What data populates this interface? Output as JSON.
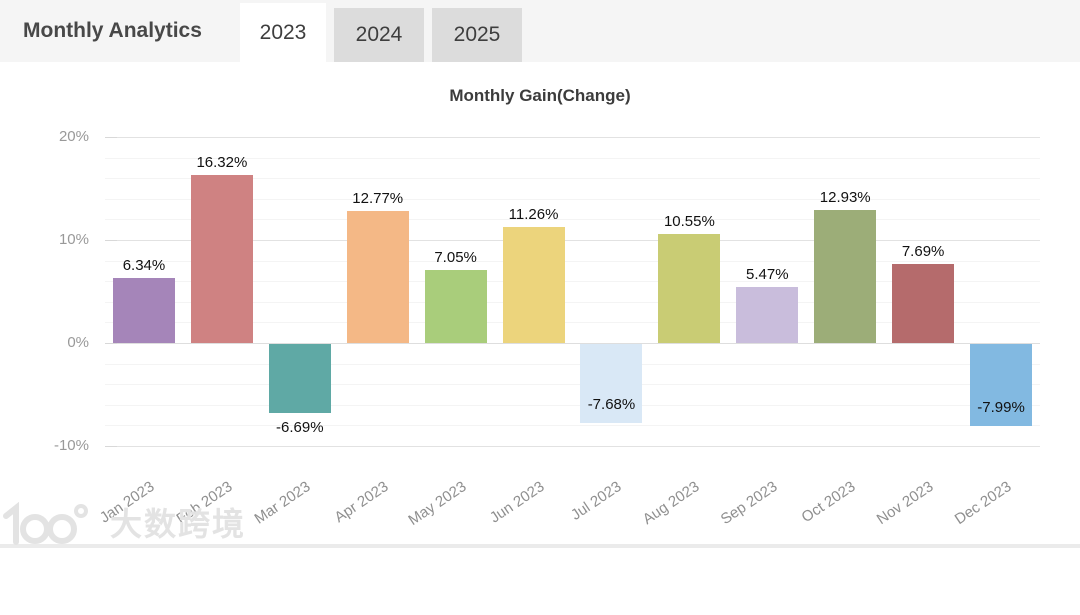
{
  "header": {
    "title": "Monthly Analytics",
    "tabs": [
      {
        "label": "2023",
        "active": true
      },
      {
        "label": "2024",
        "active": false
      },
      {
        "label": "2025",
        "active": false
      }
    ]
  },
  "chart_data": {
    "type": "bar",
    "title": "Monthly Gain(Change)",
    "categories": [
      "Jan 2023",
      "Feb 2023",
      "Mar 2023",
      "Apr 2023",
      "May 2023",
      "Jun 2023",
      "Jul 2023",
      "Aug 2023",
      "Sep 2023",
      "Oct 2023",
      "Nov 2023",
      "Dec 2023"
    ],
    "values": [
      6.34,
      16.32,
      -6.69,
      12.77,
      7.05,
      11.26,
      -7.68,
      10.55,
      5.47,
      12.93,
      7.69,
      -7.99
    ],
    "value_labels": [
      "6.34%",
      "16.32%",
      "-6.69%",
      "12.77%",
      "7.05%",
      "11.26%",
      "-7.68%",
      "10.55%",
      "5.47%",
      "12.93%",
      "7.69%",
      "-7.99%"
    ],
    "bar_colors": [
      "#a585b9",
      "#cf8282",
      "#5fa9a5",
      "#f4b886",
      "#a9cd7b",
      "#ecd47c",
      "#d9e8f6",
      "#c9cc74",
      "#c9bddc",
      "#9cad78",
      "#b56b6c",
      "#82b9e1"
    ],
    "xlabel": "",
    "ylabel": "",
    "y_ticks": [
      {
        "value": 20,
        "label": "20%"
      },
      {
        "value": 10,
        "label": "10%"
      },
      {
        "value": 0,
        "label": "0%"
      },
      {
        "value": -10,
        "label": "-10%"
      }
    ],
    "ylim": [
      -11.4,
      21.2
    ],
    "grid": {
      "shown": true,
      "major_step": 10,
      "minor_step": 2
    },
    "legend": "none"
  },
  "watermark": {
    "logo": "100",
    "text": "大数跨境"
  }
}
